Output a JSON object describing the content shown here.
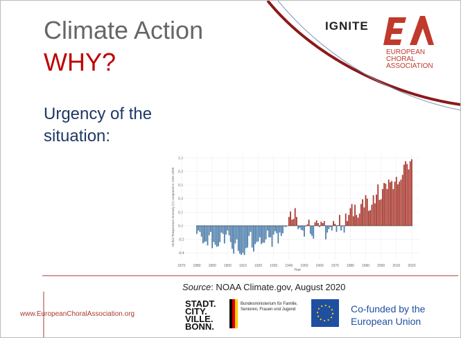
{
  "slide": {
    "title": "Climate Action",
    "title_accent": "WHY?",
    "subtitle": "Urgency of the situation:",
    "logo_ignite": "IGNITE",
    "logo_eca": "EUROPEAN CHORAL ASSOCIATION",
    "source_label": "Source",
    "source_text": ": NOAA Climate.gov, August 2020",
    "footer_url": "www.EuropeanChoralAssociation.org",
    "bonn": "STADT. CITY. VILLE. BONN.",
    "ministry": "Bundesministerium für Familie, Senioren, Frauen und Jugend",
    "eu": "Co-funded by the European Union"
  },
  "chart_data": {
    "type": "bar",
    "y_label": "Global Temperature Anomaly (C) compared to 1901-2000",
    "x_label": "Year",
    "positive_color": "#a8392f",
    "negative_color": "#4f7fab",
    "xlim": [
      1866,
      2025
    ],
    "xticks": [
      1870,
      1880,
      1890,
      1900,
      1910,
      1920,
      1930,
      1940,
      1950,
      1960,
      1970,
      1980,
      1990,
      2000,
      2010,
      2020
    ],
    "ylim": [
      -0.5,
      1.05
    ],
    "yticks": [
      {
        "value": 1,
        "label": "1.0"
      },
      {
        "value": 0.8,
        "label": "0.8"
      },
      {
        "value": 0.6,
        "label": "0.6"
      },
      {
        "value": 0.4,
        "label": "0.4"
      },
      {
        "value": 0.2,
        "label": "0.2"
      },
      {
        "value": 0,
        "label": "0.0"
      },
      {
        "value": -0.2,
        "label": "-0.2"
      },
      {
        "value": -0.4,
        "label": "-0.4"
      }
    ],
    "grid": true,
    "x": [
      1880,
      1881,
      1882,
      1883,
      1884,
      1885,
      1886,
      1887,
      1888,
      1889,
      1890,
      1891,
      1892,
      1893,
      1894,
      1895,
      1896,
      1897,
      1898,
      1899,
      1900,
      1901,
      1902,
      1903,
      1904,
      1905,
      1906,
      1907,
      1908,
      1909,
      1910,
      1911,
      1912,
      1913,
      1914,
      1915,
      1916,
      1917,
      1918,
      1919,
      1920,
      1921,
      1922,
      1923,
      1924,
      1925,
      1926,
      1927,
      1928,
      1929,
      1930,
      1931,
      1932,
      1933,
      1934,
      1935,
      1936,
      1937,
      1938,
      1939,
      1940,
      1941,
      1942,
      1943,
      1944,
      1945,
      1946,
      1947,
      1948,
      1949,
      1950,
      1951,
      1952,
      1953,
      1954,
      1955,
      1956,
      1957,
      1958,
      1959,
      1960,
      1961,
      1962,
      1963,
      1964,
      1965,
      1966,
      1967,
      1968,
      1969,
      1970,
      1971,
      1972,
      1973,
      1974,
      1975,
      1976,
      1977,
      1978,
      1979,
      1980,
      1981,
      1982,
      1983,
      1984,
      1985,
      1986,
      1987,
      1988,
      1989,
      1990,
      1991,
      1992,
      1993,
      1994,
      1995,
      1996,
      1997,
      1998,
      1999,
      2000,
      2001,
      2002,
      2003,
      2004,
      2005,
      2006,
      2007,
      2008,
      2009,
      2010,
      2011,
      2012,
      2013,
      2014,
      2015,
      2016,
      2017,
      2018,
      2019,
      2020
    ],
    "values": [
      -0.12,
      -0.07,
      -0.09,
      -0.16,
      -0.26,
      -0.24,
      -0.23,
      -0.29,
      -0.14,
      -0.09,
      -0.33,
      -0.24,
      -0.28,
      -0.31,
      -0.3,
      -0.24,
      -0.1,
      -0.12,
      -0.26,
      -0.13,
      -0.07,
      -0.14,
      -0.24,
      -0.34,
      -0.41,
      -0.26,
      -0.2,
      -0.37,
      -0.41,
      -0.43,
      -0.4,
      -0.43,
      -0.33,
      -0.32,
      -0.15,
      -0.09,
      -0.32,
      -0.38,
      -0.27,
      -0.24,
      -0.23,
      -0.17,
      -0.27,
      -0.25,
      -0.25,
      -0.2,
      -0.07,
      -0.17,
      -0.17,
      -0.31,
      -0.13,
      -0.08,
      -0.11,
      -0.26,
      -0.1,
      -0.15,
      -0.11,
      -0.01,
      -0.02,
      0.0,
      0.13,
      0.21,
      0.09,
      0.1,
      0.26,
      0.13,
      -0.05,
      -0.03,
      -0.06,
      -0.07,
      -0.16,
      -0.01,
      0.02,
      0.09,
      -0.12,
      -0.15,
      -0.19,
      0.05,
      0.08,
      0.04,
      -0.02,
      0.06,
      0.04,
      0.07,
      -0.2,
      -0.1,
      -0.05,
      -0.02,
      -0.07,
      0.07,
      0.03,
      -0.09,
      0.01,
      0.16,
      -0.07,
      -0.01,
      -0.1,
      0.18,
      0.07,
      0.16,
      0.26,
      0.32,
      0.14,
      0.31,
      0.16,
      0.12,
      0.18,
      0.32,
      0.39,
      0.27,
      0.45,
      0.4,
      0.22,
      0.23,
      0.31,
      0.45,
      0.33,
      0.46,
      0.61,
      0.38,
      0.39,
      0.54,
      0.63,
      0.62,
      0.54,
      0.68,
      0.64,
      0.66,
      0.54,
      0.65,
      0.72,
      0.61,
      0.65,
      0.68,
      0.75,
      0.9,
      0.95,
      0.91,
      0.83,
      0.95,
      0.98
    ]
  }
}
